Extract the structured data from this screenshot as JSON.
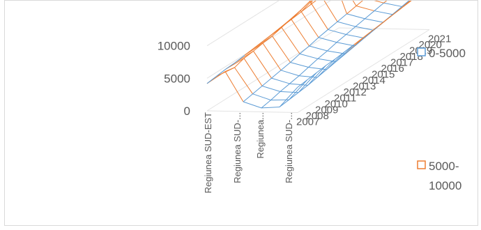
{
  "chart_data": {
    "type": "surface",
    "title": "",
    "categories": [
      "Regiunea SUD-EST",
      "Regiunea SUD-...",
      "Regiunea...",
      "Regiunea SUD-..."
    ],
    "y_ticks": [
      "10000",
      "5000",
      "0"
    ],
    "ylim": [
      0,
      12000
    ],
    "depth_labels": [
      "2007",
      "2008",
      "2009",
      "2010",
      "2011",
      "2012",
      "2013",
      "2014",
      "2015",
      "2016",
      "2017",
      "2018",
      "2019",
      "2020",
      "2021"
    ],
    "legend": [
      {
        "label": "0-5000",
        "color": "#5b9bd5"
      },
      {
        "label": "5000-\n10000",
        "label_line1": "5000-",
        "label_line2": "10000",
        "color": "#ed7d31"
      }
    ],
    "values": [
      [
        4200,
        6100,
        1500,
        600,
        800,
        3900
      ],
      [
        4400,
        5800,
        1800,
        900,
        1000,
        4100
      ],
      [
        4600,
        6300,
        2100,
        1300,
        1200,
        4300
      ],
      [
        4700,
        6500,
        2400,
        1600,
        1400,
        4500
      ],
      [
        4900,
        6800,
        2700,
        1900,
        1700,
        4600
      ],
      [
        5100,
        7000,
        3000,
        2300,
        2000,
        4800
      ],
      [
        5300,
        7400,
        3400,
        2700,
        2300,
        5000
      ],
      [
        5500,
        7800,
        3700,
        3000,
        2600,
        5200
      ],
      [
        5700,
        8200,
        4100,
        3400,
        2900,
        5400
      ],
      [
        5900,
        8700,
        4400,
        3700,
        3200,
        5600
      ],
      [
        6100,
        9100,
        4700,
        4000,
        3500,
        5800
      ],
      [
        6300,
        12500,
        5000,
        4300,
        3800,
        6000
      ],
      [
        6500,
        9800,
        5300,
        4600,
        4100,
        6200
      ],
      [
        6700,
        8400,
        5600,
        4900,
        4400,
        6400
      ],
      [
        6900,
        7200,
        5900,
        5200,
        4700,
        6600
      ]
    ],
    "grid": true,
    "legend_position": "right"
  }
}
